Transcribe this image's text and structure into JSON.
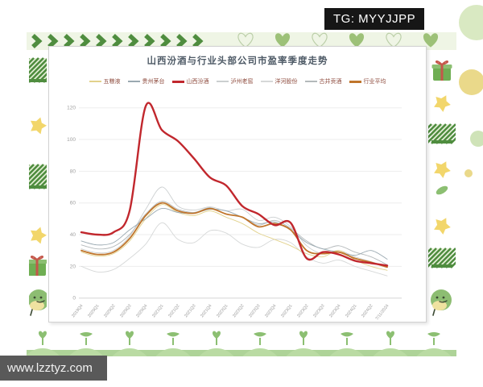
{
  "page": {
    "tg_badge": "TG: MYYJJPP",
    "watermark": "www.lzztyz.com"
  },
  "chart_data": {
    "type": "line",
    "title": "山西汾酒与行业头部公司市盈率季度走势",
    "ylabel": "",
    "xlabel": "",
    "ylim": [
      0,
      120
    ],
    "yticks": [
      0,
      20,
      40,
      60,
      80,
      100,
      120
    ],
    "grid": true,
    "legend_position": "top",
    "categories": [
      "2019Q4",
      "2020Q1",
      "2020Q2",
      "2020Q3",
      "2020Q4",
      "2021Q1",
      "2021Q2",
      "2021Q3",
      "2021Q4",
      "2022Q1",
      "2022Q2",
      "2022Q3",
      "2022Q4",
      "2023Q1",
      "2023Q2",
      "2023Q3",
      "2023Q4",
      "2024Q1",
      "2024Q2",
      "7/11/2024"
    ],
    "series": [
      {
        "name": "五粮液",
        "color": "#e2d28c",
        "width": 0.9,
        "z": 3,
        "values": [
          29,
          26.5,
          28,
          36,
          50,
          59,
          54,
          52,
          55,
          51,
          47,
          41,
          37,
          33,
          28,
          26,
          30,
          24,
          20,
          17.5
        ]
      },
      {
        "name": "贵州茅台",
        "color": "#9aa9b1",
        "width": 0.9,
        "z": 4,
        "values": [
          36,
          33.5,
          35,
          43,
          50,
          56.5,
          54,
          53.5,
          56,
          55,
          51,
          47,
          48,
          43,
          35,
          31,
          29,
          27,
          30,
          24.5
        ]
      },
      {
        "name": "山西汾酒",
        "color": "#c1272d",
        "width": 2.4,
        "z": 6,
        "values": [
          41.5,
          40,
          41.5,
          55,
          121,
          106,
          99,
          88,
          76,
          71,
          58,
          53,
          46,
          47.5,
          25,
          29,
          27.5,
          23.5,
          22,
          20.5
        ]
      },
      {
        "name": "泸州老窖",
        "color": "#cbcfd0",
        "width": 0.9,
        "z": 1,
        "values": [
          31,
          28.5,
          30,
          39,
          56,
          70,
          58,
          55.5,
          57.5,
          55,
          56,
          49,
          51,
          45,
          33,
          28,
          30,
          26,
          23,
          20
        ]
      },
      {
        "name": "洋河股份",
        "color": "#d6d8d8",
        "width": 0.9,
        "z": 0,
        "values": [
          20,
          16.5,
          18,
          25,
          34,
          47.5,
          37,
          35,
          42.5,
          41,
          34,
          32,
          37,
          35,
          26,
          22,
          24,
          20,
          17,
          14
        ]
      },
      {
        "name": "古井贡酒",
        "color": "#b4b9bb",
        "width": 0.9,
        "z": 2,
        "values": [
          33.5,
          31,
          32.5,
          40,
          53,
          61,
          56,
          54,
          57,
          53,
          51,
          46,
          49,
          44,
          36,
          31,
          33,
          29,
          26,
          21
        ]
      },
      {
        "name": "行业平均",
        "color": "#c0752b",
        "width": 1.8,
        "z": 5,
        "values": [
          30,
          27.5,
          29,
          37.5,
          52,
          60,
          55,
          53.5,
          56.5,
          53,
          51,
          45,
          47,
          43,
          30,
          28,
          29,
          25,
          22.5,
          19.5
        ]
      }
    ]
  },
  "decor": {
    "top_band": {
      "chevron_icon": "chevron-right-icon",
      "chevron_count": 11,
      "hearts": [
        "outline",
        "filled",
        "outline",
        "filled",
        "outline",
        "filled"
      ]
    },
    "left_strip": [
      "washi-stripe-icon",
      "star-icon",
      "washi-stripe-icon",
      "star-icon",
      "gift-icon",
      "mascot-icon"
    ],
    "right_strip": [
      "gift-icon",
      "star-icon",
      "washi-stripe-icon",
      "star-icon",
      "leaf-icon",
      "star-icon",
      "washi-stripe-icon",
      "mascot-icon"
    ],
    "bottom_band": {
      "sprouts": [
        "heart-sprout",
        "flat-sprout",
        "heart-sprout",
        "flat-sprout",
        "heart-sprout",
        "flat-sprout",
        "heart-sprout",
        "flat-sprout",
        "heart-sprout",
        "flat-sprout"
      ]
    },
    "colors": {
      "green": "#6fae53",
      "dark_green": "#4f8d3f",
      "pale_green_bg": "#eff5e5",
      "stripe_bg": "#e9f1db",
      "yellow": "#f2d66b",
      "red_ribbon": "#c4574a",
      "mound": "#badba3",
      "mound_base": "#aed398",
      "sprout": "#8cbf72",
      "heart_fill": "#9dc178",
      "heart_outline": "#bccfa9",
      "mascot_body": "#8dbd72",
      "mascot_belly": "#efe2a0"
    }
  }
}
